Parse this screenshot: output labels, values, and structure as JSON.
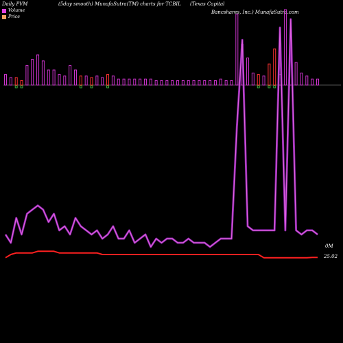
{
  "header": {
    "left": "Daily PVM",
    "middle": "(5day smooth) MunafaSutra(TM) charts for TCBIL",
    "right_line1": "(Texas Capital",
    "right_line2": "Bancshares, Inc.) MunafaSutra.com"
  },
  "legend": {
    "items": [
      {
        "label": "Volume",
        "color": "#e040e0"
      },
      {
        "label": "Price",
        "color": "#f0a060"
      }
    ]
  },
  "colors": {
    "background": "#000000",
    "volume_up": "#cc33cc",
    "volume_down": "#ff3333",
    "volume_line": "#e060e0",
    "price_line": "#ff2020",
    "baseline": "#aaaaaa"
  },
  "chart_data": {
    "type": "line",
    "title": "Daily PVM",
    "x": [
      1,
      2,
      3,
      4,
      5,
      6,
      7,
      8,
      9,
      10,
      11,
      12,
      13,
      14,
      15,
      16,
      17,
      18,
      19,
      20,
      21,
      22,
      23,
      24,
      25,
      26,
      27,
      28,
      29,
      30,
      31,
      32,
      33,
      34,
      35,
      36,
      37,
      38,
      39,
      40,
      41,
      42,
      43,
      44,
      45,
      46,
      47,
      48,
      49,
      50,
      51,
      52,
      53,
      54,
      55,
      56,
      57,
      58,
      59
    ],
    "series": [
      {
        "name": "Volume",
        "values": [
          0.5,
          0.3,
          0.9,
          0.5,
          1.0,
          1.1,
          1.2,
          1.1,
          0.8,
          1.0,
          0.6,
          0.7,
          0.5,
          0.9,
          0.7,
          0.6,
          0.5,
          0.6,
          0.4,
          0.5,
          0.7,
          0.4,
          0.4,
          0.6,
          0.3,
          0.4,
          0.5,
          0.2,
          0.4,
          0.3,
          0.4,
          0.4,
          0.3,
          0.3,
          0.4,
          0.3,
          0.3,
          0.3,
          0.2,
          0.3,
          0.4,
          0.4,
          0.4,
          3.1,
          5.2,
          0.7,
          0.6,
          0.6,
          0.6,
          0.6,
          0.6,
          5.5,
          0.6,
          5.7,
          0.6,
          0.5,
          0.6,
          0.6,
          0.5
        ],
        "bars": [
          0.7,
          0.5,
          0.5,
          0.3,
          1.3,
          1.7,
          2.0,
          1.6,
          1.0,
          1.0,
          0.7,
          0.6,
          1.3,
          1.0,
          0.6,
          0.6,
          0.5,
          0.6,
          0.5,
          0.7,
          0.6,
          0.4,
          0.4,
          0.4,
          0.4,
          0.4,
          0.4,
          0.4,
          0.3,
          0.3,
          0.3,
          0.3,
          0.3,
          0.3,
          0.3,
          0.3,
          0.3,
          0.3,
          0.3,
          0.3,
          0.4,
          0.3,
          0.3,
          4.7,
          2.7,
          1.8,
          0.8,
          0.7,
          0.6,
          1.4,
          2.4,
          0.7,
          5.0,
          3.0,
          1.5,
          0.8,
          0.6,
          0.4,
          0.4
        ],
        "bar_direction": [
          "up",
          "up",
          "down",
          "down",
          "up",
          "up",
          "up",
          "up",
          "up",
          "up",
          "up",
          "up",
          "up",
          "up",
          "down",
          "up",
          "down",
          "up",
          "up",
          "down",
          "up",
          "up",
          "up",
          "up",
          "up",
          "up",
          "up",
          "up",
          "up",
          "up",
          "up",
          "up",
          "up",
          "up",
          "up",
          "up",
          "up",
          "up",
          "up",
          "up",
          "up",
          "up",
          "up",
          "up",
          "up",
          "up",
          "up",
          "down",
          "up",
          "down",
          "down",
          "up",
          "up",
          "up",
          "up",
          "up",
          "up",
          "up",
          "up"
        ]
      },
      {
        "name": "Price",
        "values": [
          25.0,
          25.2,
          25.3,
          25.3,
          25.3,
          25.3,
          25.4,
          25.4,
          25.4,
          25.4,
          25.3,
          25.3,
          25.3,
          25.3,
          25.3,
          25.3,
          25.3,
          25.3,
          25.2,
          25.2,
          25.2,
          25.2,
          25.2,
          25.2,
          25.2,
          25.2,
          25.2,
          25.2,
          25.2,
          25.2,
          25.2,
          25.2,
          25.2,
          25.2,
          25.2,
          25.2,
          25.2,
          25.2,
          25.2,
          25.2,
          25.2,
          25.2,
          25.2,
          25.2,
          25.2,
          25.2,
          25.2,
          25.2,
          25.0,
          25.0,
          25.0,
          25.0,
          25.0,
          25.0,
          25.0,
          25.0,
          25.0,
          25.02,
          25.02
        ]
      }
    ],
    "right_labels": {
      "volume": "0M",
      "price": "25.02"
    },
    "legend_position": "top-left",
    "grid": false
  }
}
